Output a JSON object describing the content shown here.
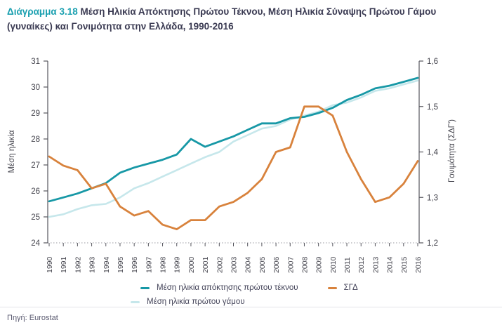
{
  "title": {
    "number": "Διάγραμμα 3.18",
    "text": "Μέση Ηλικία Απόκτησης Πρώτου Τέκνου, Μέση Ηλικία Σύναψης Πρώτου Γάμου (γυναίκες) και Γονιμότητα στην Ελλάδα, 1990-2016"
  },
  "source": {
    "text": "Πηγή: Eurostat"
  },
  "colors": {
    "accent_teal": "#1ba0b0",
    "title_dark": "#3a3a52",
    "axis_line": "#56565e",
    "axis_text": "#45454e",
    "grid_dotted": "#9a9aa2"
  },
  "chart_data": {
    "type": "line",
    "x": [
      1990,
      1991,
      1992,
      1993,
      1994,
      1995,
      1996,
      1997,
      1998,
      1999,
      2000,
      2001,
      2002,
      2003,
      2004,
      2005,
      2006,
      2007,
      2008,
      2009,
      2010,
      2011,
      2012,
      2013,
      2014,
      2015,
      2016
    ],
    "x_tick_labels": [
      "1990",
      "1991",
      "1992",
      "1993",
      "1994",
      "1995",
      "1996",
      "1997",
      "1998",
      "1999",
      "2000",
      "2001",
      "2002",
      "2003",
      "2004",
      "2005",
      "2006",
      "2007",
      "2008",
      "2009",
      "2010",
      "2011",
      "2012",
      "2013",
      "2014",
      "2015",
      "2016"
    ],
    "left_axis": {
      "label": "Μέση ηλικία",
      "min": 24,
      "max": 31,
      "ticks": [
        24,
        25,
        26,
        27,
        28,
        29,
        30,
        31
      ],
      "tick_labels": [
        "24",
        "25",
        "26",
        "27",
        "28",
        "29",
        "30",
        "31"
      ]
    },
    "right_axis": {
      "label": "Γονιμότητα (ΣΔΓ')",
      "min": 1.2,
      "max": 1.6,
      "ticks": [
        1.2,
        1.3,
        1.4,
        1.5,
        1.6
      ],
      "tick_labels": [
        "1,2",
        "1,3",
        "1,4",
        "1,5",
        "1,6"
      ]
    },
    "grid": false,
    "legend_position": "bottom",
    "legend_rows": [
      [
        0,
        2
      ],
      [
        1
      ]
    ],
    "series": [
      {
        "name": "Μέση ηλικία απόκτησης πρώτου τέκνου",
        "axis": "left",
        "color": "#1798a6",
        "width": 2.8,
        "values": [
          25.6,
          25.75,
          25.9,
          26.1,
          26.3,
          26.7,
          26.9,
          27.05,
          27.2,
          27.4,
          28.0,
          27.7,
          27.9,
          28.1,
          28.35,
          28.6,
          28.6,
          28.8,
          28.85,
          29.0,
          29.2,
          29.5,
          29.7,
          29.95,
          30.05,
          30.2,
          30.35
        ]
      },
      {
        "name": "Μέση ηλικία πρώτου γάμου",
        "axis": "left",
        "color": "#c6e7eb",
        "width": 2.6,
        "values": [
          25.0,
          25.1,
          25.3,
          25.45,
          25.5,
          25.75,
          26.1,
          26.3,
          26.55,
          26.8,
          27.05,
          27.3,
          27.5,
          27.9,
          28.15,
          28.4,
          28.5,
          28.75,
          28.9,
          29.05,
          29.3,
          29.4,
          29.6,
          29.85,
          29.95,
          30.1,
          30.25
        ]
      },
      {
        "name": "ΣΓΔ",
        "axis": "right",
        "color": "#d8823c",
        "width": 2.8,
        "values": [
          1.39,
          1.37,
          1.36,
          1.32,
          1.33,
          1.28,
          1.26,
          1.27,
          1.24,
          1.23,
          1.25,
          1.25,
          1.28,
          1.29,
          1.31,
          1.34,
          1.4,
          1.41,
          1.5,
          1.5,
          1.48,
          1.4,
          1.34,
          1.29,
          1.3,
          1.33,
          1.38
        ]
      }
    ]
  }
}
